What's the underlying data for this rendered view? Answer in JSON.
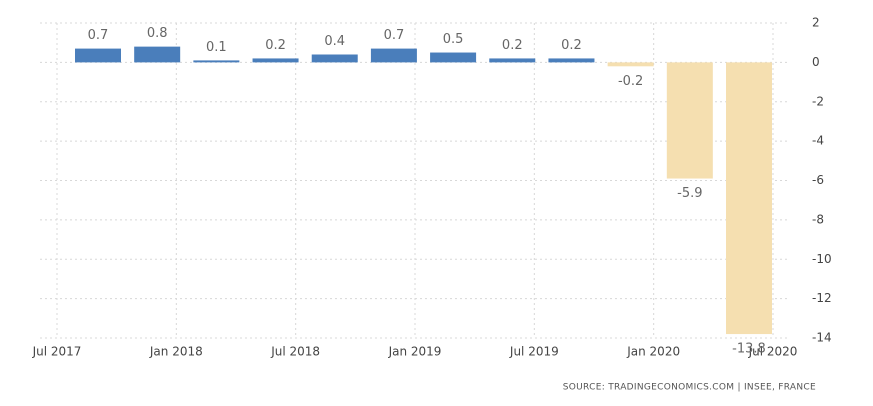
{
  "chart_data": {
    "type": "bar",
    "categories": [
      null,
      null,
      null,
      null,
      null,
      null,
      null,
      null,
      null,
      null,
      null,
      null
    ],
    "values": [
      0.7,
      0.8,
      0.1,
      0.2,
      0.4,
      0.7,
      0.5,
      0.2,
      0.2,
      -0.2,
      -5.9,
      -13.8
    ],
    "color": "#4a7ebb",
    "negative_color": "#f5dfb0",
    "x_labels": [
      "Jul 2017",
      "Jan 2018",
      "Jul 2018",
      "Jan 2019",
      "Jul 2019",
      "Jan 2020",
      "Jul 2020"
    ],
    "ylim": [
      -14,
      2
    ],
    "yticks": [
      2,
      0,
      -2,
      -4,
      -6,
      -8,
      -10,
      -12,
      -14
    ],
    "grid": true,
    "source": "SOURCE: TRADINGECONOMICS.COM | INSEE, FRANCE"
  }
}
